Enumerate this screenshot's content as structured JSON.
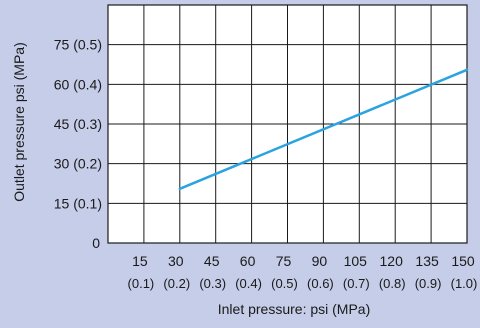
{
  "colors": {
    "background": "#c5cde8",
    "plot_area": "#ffffff",
    "grid": "#1a1a1a",
    "line": "#2aa3e0"
  },
  "chart_data": {
    "type": "line",
    "title": "",
    "xlabel": "Inlet pressure: psi (MPa)",
    "ylabel": "Outlet pressure  psi (MPa)",
    "xlim": [
      0,
      150
    ],
    "ylim": [
      0,
      90
    ],
    "grid": true,
    "origin_label": "0",
    "x_ticks": [
      {
        "value": 15,
        "label": "15",
        "sublabel": "(0.1)"
      },
      {
        "value": 30,
        "label": "30",
        "sublabel": "(0.2)"
      },
      {
        "value": 45,
        "label": "45",
        "sublabel": "(0.3)"
      },
      {
        "value": 60,
        "label": "60",
        "sublabel": "(0.4)"
      },
      {
        "value": 75,
        "label": "75",
        "sublabel": "(0.5)"
      },
      {
        "value": 90,
        "label": "90",
        "sublabel": "(0.6)"
      },
      {
        "value": 105,
        "label": "105",
        "sublabel": "(0.7)"
      },
      {
        "value": 120,
        "label": "120",
        "sublabel": "(0.8)"
      },
      {
        "value": 135,
        "label": "135",
        "sublabel": "(0.9)"
      },
      {
        "value": 150,
        "label": "150",
        "sublabel": "(1.0)"
      }
    ],
    "y_ticks": [
      {
        "value": 15,
        "label": "15 (0.1)"
      },
      {
        "value": 30,
        "label": "30 (0.2)"
      },
      {
        "value": 45,
        "label": "45 (0.3)"
      },
      {
        "value": 60,
        "label": "60 (0.4)"
      },
      {
        "value": 75,
        "label": "75 (0.5)"
      }
    ],
    "series": [
      {
        "x": [
          30,
          150
        ],
        "y": [
          20.5,
          65.5
        ]
      }
    ]
  }
}
